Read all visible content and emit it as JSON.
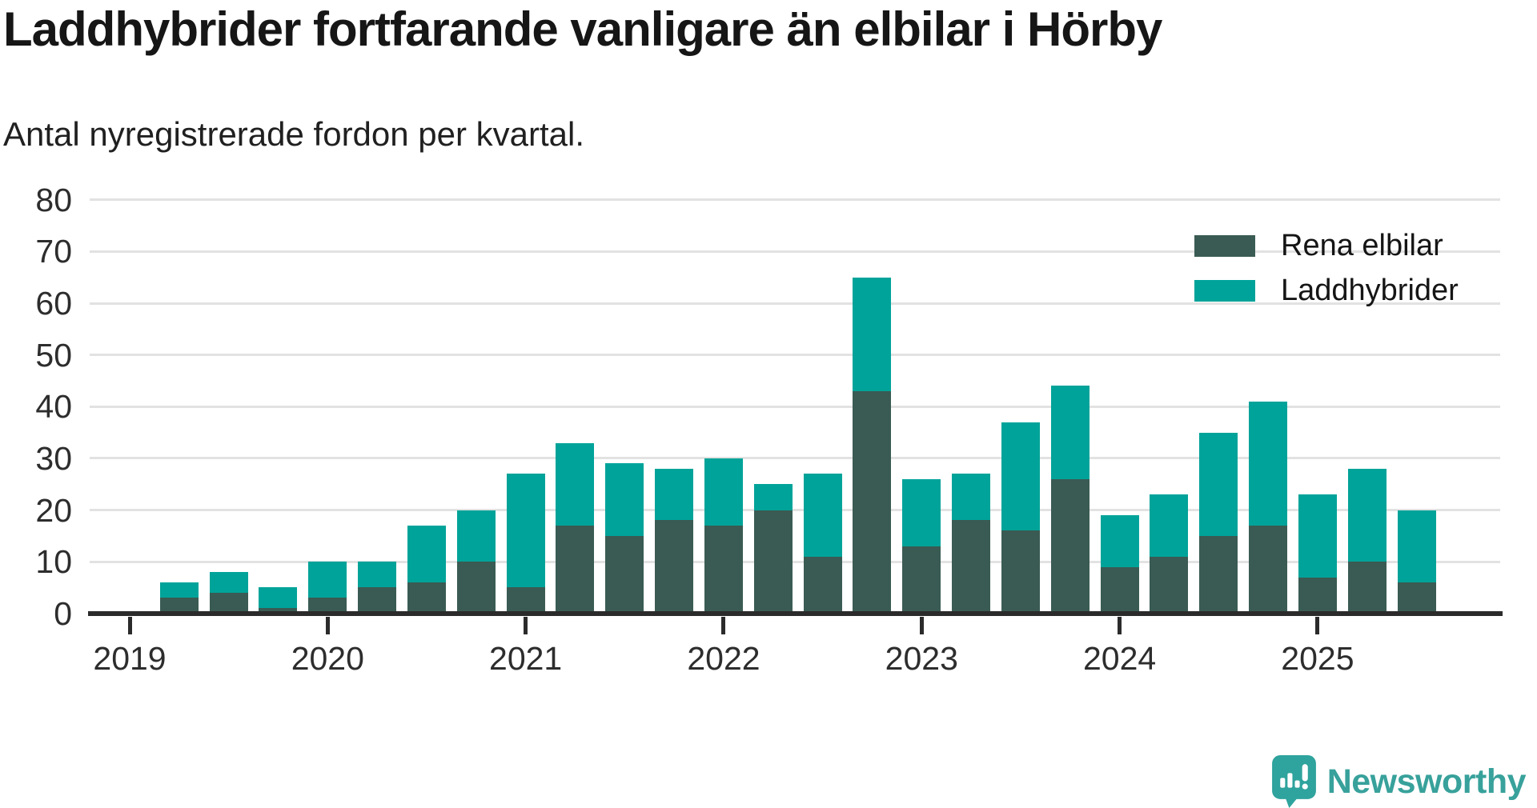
{
  "title": "Laddhybrider fortfarande vanligare än elbilar i Hörby",
  "subtitle": "Antal nyregistrerade fordon per kvartal.",
  "legend": {
    "items": [
      {
        "label": "Rena elbilar",
        "color": "#3a5b53"
      },
      {
        "label": "Laddhybrider",
        "color": "#00a399"
      }
    ]
  },
  "chart_data": {
    "type": "bar",
    "stacked": true,
    "title": "Laddhybrider fortfarande vanligare än elbilar i Hörby",
    "subtitle": "Antal nyregistrerade fordon per kvartal.",
    "xlabel": "",
    "ylabel": "",
    "ylim": [
      0,
      80
    ],
    "yticks": [
      0,
      10,
      20,
      30,
      40,
      50,
      60,
      70,
      80
    ],
    "grid": true,
    "legend_position": "top-right",
    "x_year_labels": [
      "2019",
      "2020",
      "2021",
      "2022",
      "2023",
      "2024",
      "2025"
    ],
    "categories": [
      "2019-Q2",
      "2019-Q3",
      "2019-Q4",
      "2020-Q1",
      "2020-Q2",
      "2020-Q3",
      "2020-Q4",
      "2021-Q1",
      "2021-Q2",
      "2021-Q3",
      "2021-Q4",
      "2022-Q1",
      "2022-Q2",
      "2022-Q3",
      "2022-Q4",
      "2023-Q1",
      "2023-Q2",
      "2023-Q3",
      "2023-Q4",
      "2024-Q1",
      "2024-Q2",
      "2024-Q3",
      "2024-Q4",
      "2025-Q1",
      "2025-Q2",
      "2025-Q3"
    ],
    "series": [
      {
        "name": "Rena elbilar",
        "color": "#3a5b53",
        "values": [
          3,
          4,
          1,
          3,
          5,
          6,
          10,
          5,
          17,
          15,
          18,
          17,
          20,
          11,
          43,
          13,
          18,
          16,
          26,
          9,
          11,
          15,
          17,
          7,
          10,
          6
        ]
      },
      {
        "name": "Laddhybrider",
        "color": "#00a399",
        "values": [
          3,
          4,
          4,
          7,
          5,
          11,
          10,
          22,
          16,
          14,
          10,
          13,
          5,
          16,
          22,
          13,
          9,
          21,
          18,
          10,
          12,
          20,
          24,
          16,
          18,
          14
        ]
      }
    ],
    "totals": [
      6,
      8,
      5,
      10,
      10,
      17,
      20,
      27,
      33,
      29,
      28,
      30,
      25,
      27,
      65,
      26,
      27,
      37,
      44,
      19,
      23,
      35,
      41,
      23,
      28,
      20
    ]
  },
  "branding": {
    "logo_text": "Newsworthy",
    "logo_color": "#38a19b"
  }
}
